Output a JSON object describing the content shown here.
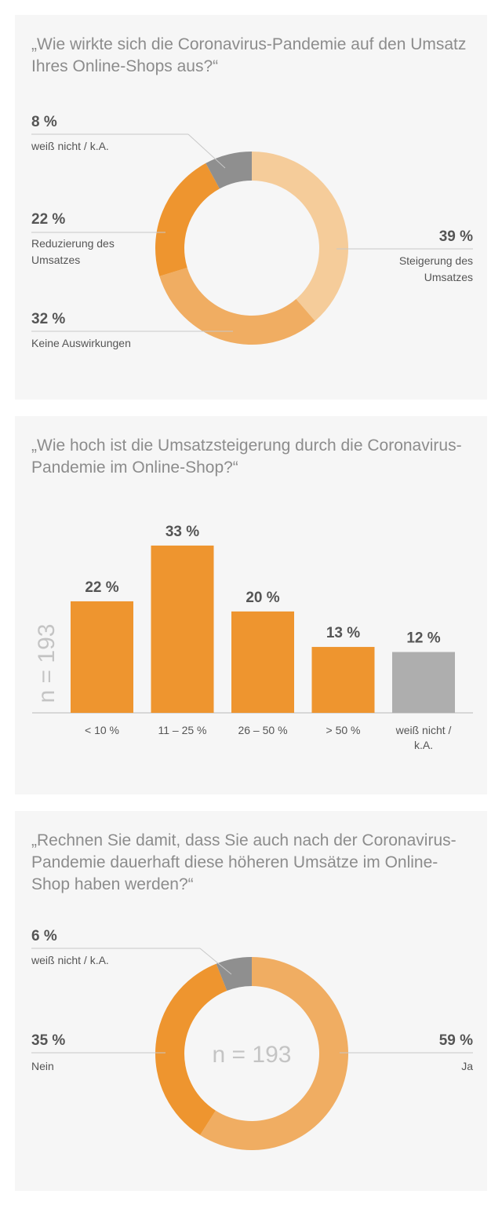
{
  "colors": {
    "orange_dark": "#ee952f",
    "orange_mid": "#f0ad62",
    "orange_light": "#f5cc9a",
    "gray": "#8f8f8f",
    "bar_gray": "#aeaeae",
    "leader": "#c8c8c8"
  },
  "chart_data": [
    {
      "type": "pie",
      "title": "„Wie wirkte sich die Coronavirus-Pandemie auf den Umsatz Ihres Online-Shops aus?“",
      "slices": [
        {
          "pct_label": "39 %",
          "label_lines": [
            "Steigerung des",
            "Umsatzes"
          ],
          "value": 39,
          "color": "#f5cc9a"
        },
        {
          "pct_label": "32 %",
          "label_lines": [
            "Keine Auswirkungen"
          ],
          "value": 32,
          "color": "#f0ad62"
        },
        {
          "pct_label": "22 %",
          "label_lines": [
            "Reduzierung des",
            "Umsatzes"
          ],
          "value": 22,
          "color": "#ee952f"
        },
        {
          "pct_label": "8 %",
          "label_lines": [
            "weiß nicht / k.A."
          ],
          "value": 8,
          "color": "#8f8f8f"
        }
      ]
    },
    {
      "type": "bar",
      "title": "„Wie hoch ist die Umsatzsteigerung durch die Coronavirus-Pandemie im Online-Shop?“",
      "ylabel": "n = 193",
      "ylim": [
        0,
        35
      ],
      "categories": [
        [
          "<  10 %"
        ],
        [
          "11 – 25 %"
        ],
        [
          "26 – 50 %"
        ],
        [
          "> 50 %"
        ],
        [
          "weiß nicht /",
          "k.A."
        ]
      ],
      "values": [
        22,
        33,
        20,
        13,
        12
      ],
      "value_labels": [
        "22 %",
        "33 %",
        "20 %",
        "13 %",
        "12 %"
      ],
      "colors": [
        "#ee952f",
        "#ee952f",
        "#ee952f",
        "#ee952f",
        "#aeaeae"
      ]
    },
    {
      "type": "pie",
      "title": "„Rechnen Sie damit, dass Sie auch nach der Coronavirus-Pandemie dauerhaft diese höheren Umsätze im Online-Shop haben werden?“",
      "center_label": "n = 193",
      "slices": [
        {
          "pct_label": "59 %",
          "label_lines": [
            "Ja"
          ],
          "value": 59,
          "color": "#f0ad62"
        },
        {
          "pct_label": "35 %",
          "label_lines": [
            "Nein"
          ],
          "value": 35,
          "color": "#ee952f"
        },
        {
          "pct_label": "6 %",
          "label_lines": [
            "weiß nicht / k.A."
          ],
          "value": 6,
          "color": "#8f8f8f"
        }
      ]
    }
  ]
}
